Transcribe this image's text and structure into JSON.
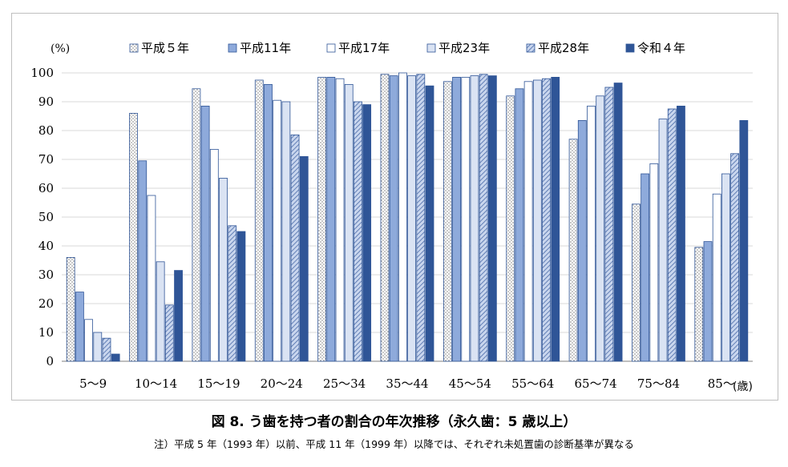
{
  "chart_data": {
    "type": "bar",
    "unit_label": "(%)",
    "x_unit_label": "(歳)",
    "categories": [
      "5～9",
      "10～14",
      "15～19",
      "20～24",
      "25～34",
      "35～44",
      "45～54",
      "55～64",
      "65～74",
      "75～84",
      "85～"
    ],
    "ylim": [
      0,
      100
    ],
    "yticks": [
      0,
      10,
      20,
      30,
      40,
      50,
      60,
      70,
      80,
      90,
      100
    ],
    "grid": true,
    "legend_position": "top",
    "series": [
      {
        "name": "平成５年",
        "color": "#ffffff",
        "pattern": "dots",
        "values": [
          36,
          86,
          94.5,
          97.5,
          98.5,
          99.5,
          97,
          92,
          77,
          54.5,
          39.5
        ]
      },
      {
        "name": "平成11年",
        "color": "#8eaadb",
        "pattern": "solid",
        "values": [
          24,
          69.5,
          88.5,
          96,
          98.5,
          99,
          98.5,
          94.5,
          83.5,
          65,
          41.5
        ]
      },
      {
        "name": "平成17年",
        "color": "#ffffff",
        "pattern": "solid",
        "values": [
          14.5,
          57.5,
          73.5,
          90.5,
          98,
          100,
          98.5,
          97,
          88.5,
          68.5,
          58
        ]
      },
      {
        "name": "平成23年",
        "color": "#dae3f3",
        "pattern": "solid",
        "values": [
          10,
          34.5,
          63.5,
          90,
          96,
          99,
          99,
          97.5,
          92,
          84,
          65
        ]
      },
      {
        "name": "平成28年",
        "color": "#b4c7e7",
        "pattern": "hatch",
        "values": [
          8,
          19.5,
          47,
          78.5,
          90,
          99.5,
          99.5,
          98,
          95,
          87.5,
          72
        ]
      },
      {
        "name": "令和４年",
        "color": "#2f5597",
        "pattern": "solid",
        "values": [
          2.5,
          31.5,
          45,
          71,
          89,
          95.5,
          99,
          98.5,
          96.5,
          88.5,
          83.5
        ]
      }
    ]
  },
  "caption": "図 8.  う歯を持つ者の割合の年次推移（永久歯：5 歳以上）",
  "note": "注）平成 5 年（1993 年）以前、平成 11 年（1999 年）以降では、それぞれ未処置歯の診断基準が異なる"
}
